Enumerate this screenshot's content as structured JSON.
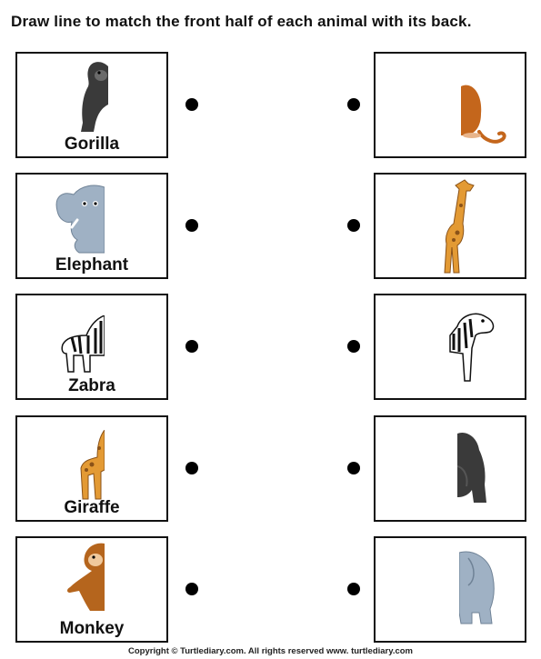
{
  "worksheet": {
    "instruction": "Draw line to match the front half of each animal with its back.",
    "front_halves": [
      {
        "label": "Gorilla",
        "icon": "gorilla-front-icon"
      },
      {
        "label": "Elephant",
        "icon": "elephant-front-icon"
      },
      {
        "label": "Zabra",
        "icon": "zebra-front-icon"
      },
      {
        "label": "Giraffe",
        "icon": "giraffe-front-icon"
      },
      {
        "label": "Monkey",
        "icon": "monkey-front-icon"
      }
    ],
    "back_halves": [
      {
        "icon": "monkey-back-icon"
      },
      {
        "icon": "giraffe-back-icon"
      },
      {
        "icon": "zebra-back-icon"
      },
      {
        "icon": "gorilla-back-icon"
      },
      {
        "icon": "elephant-back-icon"
      }
    ]
  },
  "footer": {
    "copyright": "Copyright © Turtlediary.com. All rights reserved   www. turtlediary.com"
  }
}
